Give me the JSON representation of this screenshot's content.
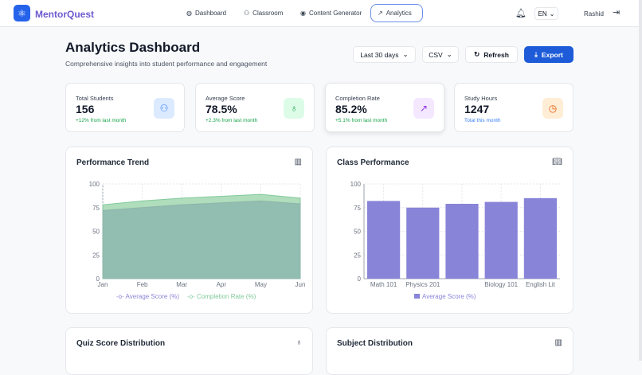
{
  "app": {
    "name": "MentorQuest",
    "user": "Rashid",
    "language": "EN"
  },
  "nav": [
    {
      "label": "Dashboard",
      "icon": "gauge-icon"
    },
    {
      "label": "Classroom",
      "icon": "users-icon"
    },
    {
      "label": "Content Generator",
      "icon": "brain-icon"
    },
    {
      "label": "Analytics",
      "icon": "trend-icon",
      "active": true
    }
  ],
  "header": {
    "title": "Analytics Dashboard",
    "subtitle": "Comprehensive insights into student performance and engagement",
    "range": "Last 30 days",
    "format": "CSV",
    "refresh": "Refresh",
    "export": "Export"
  },
  "stats": [
    {
      "label": "Total Students",
      "value": "156",
      "change": "+12% from last month",
      "color": "#3b82f6"
    },
    {
      "label": "Average Score",
      "value": "78.5%",
      "change": "+2.3% from last month",
      "color": "#16a34a"
    },
    {
      "label": "Completion Rate",
      "value": "85.2%",
      "change": "+5.1% from last month",
      "color": "#9333ea"
    },
    {
      "label": "Study Hours",
      "value": "1247",
      "change": "Total this month",
      "color": "#ea580c"
    }
  ],
  "cards": {
    "trend": "Performance Trend",
    "class": "Class Performance",
    "quiz": "Quiz Score Distribution",
    "subject": "Subject Distribution"
  },
  "chart_data": [
    {
      "type": "area",
      "title": "Performance Trend",
      "categories": [
        "Jan",
        "Feb",
        "Mar",
        "Apr",
        "May",
        "Jun"
      ],
      "ylim": [
        0,
        100
      ],
      "yticks": [
        0,
        25,
        50,
        75,
        100
      ],
      "grid": true,
      "legend": "bottom",
      "series": [
        {
          "name": "Average Score (%)",
          "values": [
            72,
            75,
            78,
            80,
            82,
            79
          ],
          "color": "#8b84d7"
        },
        {
          "name": "Completion Rate (%)",
          "values": [
            78,
            82,
            85,
            87,
            89,
            85
          ],
          "color": "#82ca9d"
        }
      ]
    },
    {
      "type": "bar",
      "title": "Class Performance",
      "categories": [
        "Math 101",
        "Physics 201",
        "",
        "Biology 101",
        "English Lit"
      ],
      "ylim": [
        0,
        100
      ],
      "yticks": [
        0,
        25,
        50,
        75,
        100
      ],
      "grid": true,
      "legend": "bottom",
      "series": [
        {
          "name": "Average Score (%)",
          "values": [
            82,
            75,
            79,
            81,
            85
          ],
          "color": "#8884d8"
        }
      ]
    }
  ]
}
